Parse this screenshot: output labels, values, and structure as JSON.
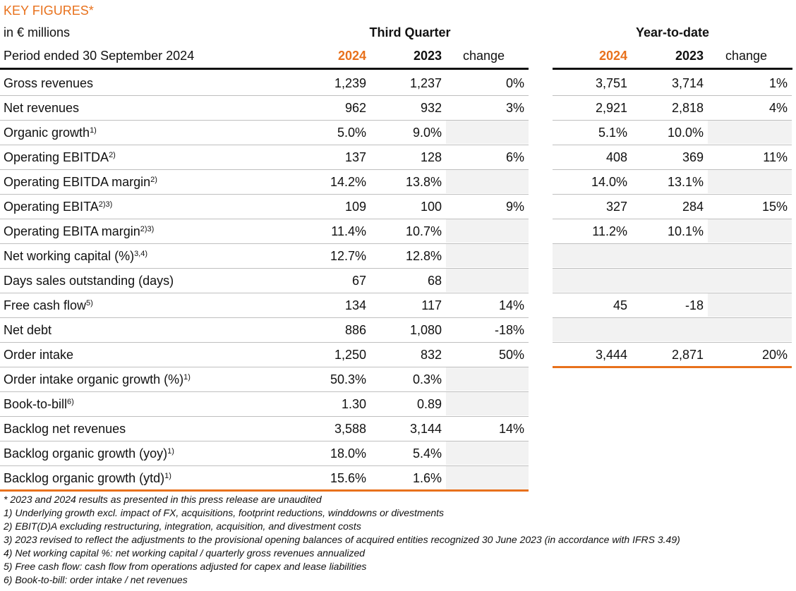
{
  "title": "KEY FIGURES*",
  "unit": "in € millions",
  "period": "Period ended 30 September 2024",
  "groups": [
    "Third Quarter",
    "Year-to-date"
  ],
  "columns": [
    "2024",
    "2023",
    "change",
    "2024",
    "2023",
    "change"
  ],
  "rows": [
    {
      "label": "Gross revenues",
      "q": [
        "1,239",
        "1,237",
        "0%"
      ],
      "ytd": [
        "3,751",
        "3,714",
        "1%"
      ]
    },
    {
      "label": "Net revenues",
      "q": [
        "962",
        "932",
        "3%"
      ],
      "ytd": [
        "2,921",
        "2,818",
        "4%"
      ]
    },
    {
      "label": "Organic growth",
      "sup": "1)",
      "q": [
        "5.0%",
        "9.0%",
        null
      ],
      "ytd": [
        "5.1%",
        "10.0%",
        null
      ]
    },
    {
      "label": "Operating EBITDA",
      "sup": "2)",
      "q": [
        "137",
        "128",
        "6%"
      ],
      "ytd": [
        "408",
        "369",
        "11%"
      ]
    },
    {
      "label": "Operating EBITDA margin",
      "sup": "2)",
      "q": [
        "14.2%",
        "13.8%",
        null
      ],
      "ytd": [
        "14.0%",
        "13.1%",
        null
      ]
    },
    {
      "label": "Operating EBITA",
      "sup": "2)3)",
      "q": [
        "109",
        "100",
        "9%"
      ],
      "ytd": [
        "327",
        "284",
        "15%"
      ]
    },
    {
      "label": "Operating EBITA margin",
      "sup": "2)3)",
      "q": [
        "11.4%",
        "10.7%",
        null
      ],
      "ytd": [
        "11.2%",
        "10.1%",
        null
      ]
    },
    {
      "label": "Net working capital (%)",
      "sup": "3,4)",
      "q": [
        "12.7%",
        "12.8%",
        null
      ],
      "ytd": [
        null,
        null,
        null
      ]
    },
    {
      "label": "Days sales outstanding (days)",
      "q": [
        "67",
        "68",
        null
      ],
      "ytd": [
        null,
        null,
        null
      ]
    },
    {
      "label": "Free cash flow",
      "sup": "5)",
      "q": [
        "134",
        "117",
        "14%"
      ],
      "ytd": [
        "45",
        "-18",
        null
      ]
    },
    {
      "label": "Net debt",
      "q": [
        "886",
        "1,080",
        "-18%"
      ],
      "ytd": [
        null,
        null,
        null
      ]
    },
    {
      "label": "Order intake",
      "q": [
        "1,250",
        "832",
        "50%"
      ],
      "ytd": [
        "3,444",
        "2,871",
        "20%"
      ]
    },
    {
      "label": "Order intake organic growth (%)",
      "sup": "1)",
      "q": [
        "50.3%",
        "0.3%",
        null
      ]
    },
    {
      "label": "Book-to-bill",
      "sup": "6)",
      "q": [
        "1.30",
        "0.89",
        null
      ]
    },
    {
      "label": "Backlog net revenues",
      "q": [
        "3,588",
        "3,144",
        "14%"
      ]
    },
    {
      "label": "Backlog organic growth (yoy)",
      "sup": "1)",
      "q": [
        "18.0%",
        "5.4%",
        null
      ]
    },
    {
      "label": "Backlog organic growth (ytd)",
      "sup": "1)",
      "q": [
        "15.6%",
        "1.6%",
        null
      ]
    }
  ],
  "footnotes": [
    "* 2023 and 2024 results as presented in this press release are unaudited",
    "1) Underlying growth excl. impact of FX, acquisitions, footprint reductions, winddowns or divestments",
    "2) EBIT(D)A excluding restructuring, integration, acquisition, and divestment costs",
    "3) 2023 revised to reflect the adjustments to the provisional opening balances of acquired entities recognized 30 June 2023 (in accordance with IFRS 3.49)",
    "4) Net working capital %: net working capital / quarterly gross revenues annualized",
    "5) Free cash flow: cash flow from operations adjusted for capex and lease liabilities",
    "6) Book-to-bill: order intake / net revenues"
  ]
}
